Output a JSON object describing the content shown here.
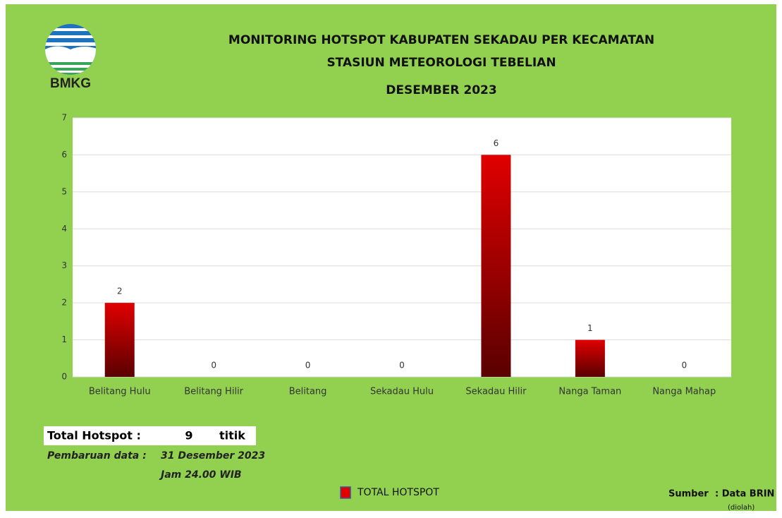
{
  "chart_data": {
    "type": "bar",
    "logo_text": "BMKG",
    "title": "MONITORING HOTSPOT KABUPATEN SEKADAU PER KECAMATAN",
    "subtitle": "STASIUN METEOROLOGI TEBELIAN",
    "period": "DESEMBER 2023",
    "categories": [
      "Belitang Hulu",
      "Belitang Hilir",
      "Belitang",
      "Sekadau Hulu",
      "Sekadau Hilir",
      "Nanga Taman",
      "Nanga Mahap"
    ],
    "series": [
      {
        "name": "TOTAL HOTSPOT",
        "color": "#e00000",
        "values": [
          2,
          0,
          0,
          0,
          6,
          1,
          0
        ]
      }
    ],
    "ylim": [
      0,
      7
    ],
    "yticks": [
      0,
      1,
      2,
      3,
      4,
      5,
      6,
      7
    ],
    "grid": true,
    "legend": "bottom",
    "total_label": "Total Hotspot :",
    "total_value": 9,
    "total_unit": "titik",
    "update_label": "Pembaruan data :",
    "update_date": "31 Desember 2023",
    "update_time": "Jam 24.00 WIB",
    "source_label": "Sumber",
    "source_value": ": Data BRIN",
    "source_note": "(diolah)"
  }
}
